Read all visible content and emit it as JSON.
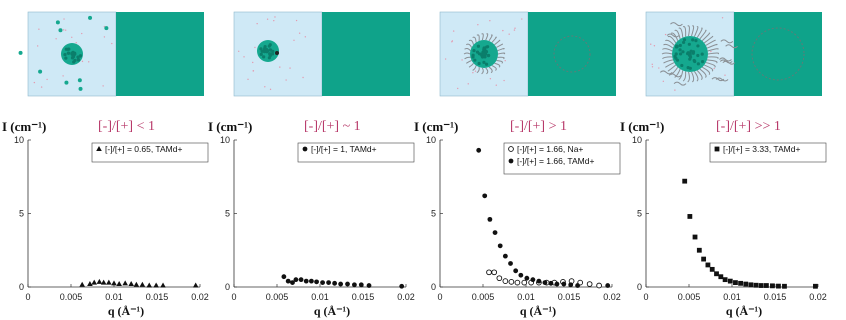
{
  "colors": {
    "panel_left_bg": "#cfe9f6",
    "panel_right_bg": "#0fa38a",
    "particle": "#15a88f",
    "ratio_title": "#b83a6a",
    "marker": "#111111"
  },
  "charts": [
    {
      "ylabel": "I (cm⁻¹)",
      "ratio_title": "[-]/[+] < 1",
      "schematic": "sparse"
    },
    {
      "ylabel": "I (cm⁻¹)",
      "ratio_title": "[-]/[+] ~ 1",
      "schematic": "compact"
    },
    {
      "ylabel": "I (cm⁻¹)",
      "ratio_title": "[-]/[+] > 1",
      "schematic": "corona"
    },
    {
      "ylabel": "I (cm⁻¹)",
      "ratio_title": "[-]/[+] >> 1",
      "schematic": "big-corona"
    }
  ],
  "chart_data": [
    {
      "type": "scatter",
      "ylabel": "I (cm⁻¹)",
      "xlabel": "q (Å⁻¹)",
      "xlim": [
        0,
        0.02
      ],
      "ylim": [
        0,
        10
      ],
      "x_ticks": [
        "0",
        "0.005",
        "0.01",
        "0.015",
        "0.02"
      ],
      "y_ticks": [
        "0",
        "5",
        "10"
      ],
      "grid": false,
      "legend_position": "top-right",
      "series": [
        {
          "name": "[-]/[+] = 0.65, TAMd+",
          "marker": "triangle",
          "x": [
            0.0063,
            0.0072,
            0.0077,
            0.0083,
            0.0088,
            0.0094,
            0.01,
            0.0106,
            0.0113,
            0.012,
            0.0126,
            0.0133,
            0.0141,
            0.0149,
            0.0157,
            0.0195
          ],
          "y": [
            0.15,
            0.2,
            0.3,
            0.35,
            0.3,
            0.3,
            0.25,
            0.2,
            0.25,
            0.2,
            0.15,
            0.15,
            0.1,
            0.1,
            0.1,
            0.1
          ]
        }
      ]
    },
    {
      "type": "scatter",
      "ylabel": "I (cm⁻¹)",
      "xlabel": "q (Å⁻¹)",
      "xlim": [
        0,
        0.02
      ],
      "ylim": [
        0,
        10
      ],
      "x_ticks": [
        "0",
        "0.005",
        "0.01",
        "0.015",
        "0.02"
      ],
      "y_ticks": [
        "0",
        "5",
        "10"
      ],
      "grid": false,
      "legend_position": "top-right",
      "series": [
        {
          "name": "[-]/[+] = 1, TAMd+",
          "marker": "circle",
          "x": [
            0.0058,
            0.0063,
            0.0068,
            0.0072,
            0.0078,
            0.0084,
            0.009,
            0.0096,
            0.0103,
            0.011,
            0.0117,
            0.0124,
            0.0132,
            0.014,
            0.0148,
            0.0157,
            0.0195
          ],
          "y": [
            0.7,
            0.4,
            0.3,
            0.5,
            0.5,
            0.4,
            0.4,
            0.35,
            0.3,
            0.3,
            0.25,
            0.2,
            0.2,
            0.15,
            0.15,
            0.1,
            0.05
          ]
        }
      ]
    },
    {
      "type": "scatter",
      "ylabel": "I (cm⁻¹)",
      "xlabel": "q (Å⁻¹)",
      "xlim": [
        0,
        0.02
      ],
      "ylim": [
        0,
        10
      ],
      "x_ticks": [
        "0",
        "0.005",
        "0.01",
        "0.015",
        "0.02"
      ],
      "y_ticks": [
        "0",
        "5",
        "10"
      ],
      "grid": false,
      "legend_position": "top-right",
      "series": [
        {
          "name": "[-]/[+] = 1.66, Na+",
          "marker": "open-circle",
          "x": [
            0.0057,
            0.0063,
            0.0069,
            0.0076,
            0.0083,
            0.009,
            0.0098,
            0.0106,
            0.0115,
            0.0124,
            0.0133,
            0.0143,
            0.0153,
            0.0163,
            0.0174,
            0.0185
          ],
          "y": [
            1.0,
            1.0,
            0.6,
            0.4,
            0.35,
            0.3,
            0.3,
            0.3,
            0.3,
            0.3,
            0.3,
            0.35,
            0.4,
            0.3,
            0.2,
            0.1
          ]
        },
        {
          "name": "[-]/[+] = 1.66, TAMd+",
          "marker": "circle",
          "x": [
            0.0045,
            0.0052,
            0.0058,
            0.0064,
            0.007,
            0.0076,
            0.0082,
            0.0088,
            0.0094,
            0.0101,
            0.0108,
            0.0115,
            0.0122,
            0.0129,
            0.0136,
            0.0144,
            0.0152,
            0.016,
            0.0195
          ],
          "y": [
            9.3,
            6.2,
            4.6,
            3.7,
            2.8,
            2.1,
            1.6,
            1.1,
            0.8,
            0.6,
            0.5,
            0.4,
            0.3,
            0.25,
            0.2,
            0.2,
            0.15,
            0.1,
            0.1
          ]
        }
      ]
    },
    {
      "type": "scatter",
      "ylabel": "I (cm⁻¹)",
      "xlabel": "q (Å⁻¹)",
      "xlim": [
        0,
        0.02
      ],
      "ylim": [
        0,
        10
      ],
      "x_ticks": [
        "0",
        "0.005",
        "0.01",
        "0.015",
        "0.02"
      ],
      "y_ticks": [
        "0",
        "5",
        "10"
      ],
      "grid": false,
      "legend_position": "top-right",
      "series": [
        {
          "name": "[-]/[+] = 3.33, TAMd+",
          "marker": "square",
          "x": [
            0.0045,
            0.0051,
            0.0057,
            0.0062,
            0.0067,
            0.0072,
            0.0077,
            0.0082,
            0.0087,
            0.0092,
            0.0098,
            0.0104,
            0.011,
            0.0116,
            0.0122,
            0.0128,
            0.0134,
            0.014,
            0.0147,
            0.0154,
            0.0161,
            0.0197
          ],
          "y": [
            7.2,
            4.8,
            3.4,
            2.5,
            1.9,
            1.5,
            1.2,
            0.9,
            0.7,
            0.5,
            0.4,
            0.3,
            0.25,
            0.2,
            0.15,
            0.12,
            0.1,
            0.1,
            0.08,
            0.06,
            0.05,
            0.05
          ]
        }
      ]
    }
  ]
}
